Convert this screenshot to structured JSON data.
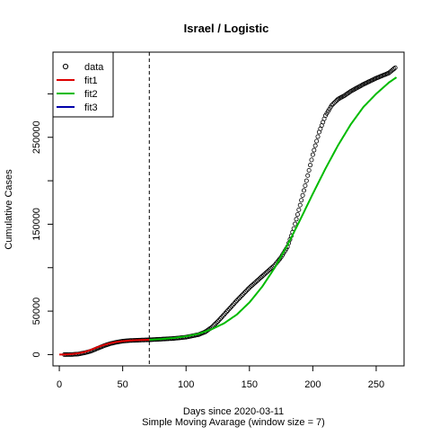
{
  "chart_data": {
    "type": "scatter",
    "title": "Israel / Logistic",
    "xlabel": "Days since 2020-03-11",
    "subtitle": "Simple Moving Avarage (window size = 7)",
    "ylabel": "Cumulative Cases",
    "xlim": [
      -5,
      272
    ],
    "ylim": [
      -13000,
      348000
    ],
    "x_ticks": [
      0,
      50,
      100,
      150,
      200,
      250
    ],
    "y_ticks": [
      0,
      50000,
      150000,
      250000
    ],
    "y_tick_labels": [
      "0",
      "50000",
      "150000",
      "250000"
    ],
    "minor_y_ticks": [
      100000,
      200000,
      300000
    ],
    "cutoff_day": 71,
    "legend": {
      "position": "top-left",
      "entries": [
        {
          "name": "data",
          "symbol": "circle",
          "color": "#000000"
        },
        {
          "name": "fit1",
          "symbol": "line",
          "color": "#dd0000"
        },
        {
          "name": "fit2",
          "symbol": "line",
          "color": "#00bb00"
        },
        {
          "name": "fit3",
          "symbol": "line",
          "color": "#0000aa"
        }
      ]
    },
    "data_series": {
      "name": "data",
      "x_start": 4,
      "x_end": 265,
      "x_step": 1,
      "anchor_x": [
        4,
        10,
        15,
        20,
        25,
        30,
        35,
        40,
        45,
        50,
        55,
        60,
        65,
        71,
        80,
        90,
        100,
        110,
        115,
        120,
        125,
        130,
        140,
        150,
        160,
        170,
        175,
        180,
        185,
        190,
        195,
        200,
        205,
        210,
        215,
        220,
        225,
        230,
        240,
        250,
        260,
        265
      ],
      "anchor_y": [
        0,
        100,
        600,
        2000,
        4000,
        7000,
        10000,
        12500,
        14200,
        15400,
        16100,
        16400,
        16700,
        17000,
        17700,
        18500,
        20000,
        23000,
        26000,
        31000,
        38000,
        46000,
        62000,
        77000,
        90000,
        103000,
        112000,
        124000,
        145000,
        172000,
        200000,
        230000,
        256000,
        275000,
        287000,
        294000,
        298000,
        303000,
        311000,
        318000,
        324000,
        330000
      ]
    },
    "fit1": {
      "name": "fit1",
      "color": "#dd0000",
      "x": [
        0,
        5,
        10,
        15,
        20,
        25,
        30,
        35,
        40,
        45,
        50,
        55,
        60,
        65,
        71
      ],
      "y": [
        0,
        200,
        600,
        1500,
        3000,
        5500,
        8500,
        11000,
        13000,
        14500,
        15500,
        16100,
        16500,
        16800,
        17000
      ]
    },
    "fit2": {
      "name": "fit2",
      "color": "#00bb00",
      "x": [
        71,
        80,
        90,
        100,
        110,
        120,
        130,
        140,
        150,
        160,
        170,
        180,
        190,
        200,
        210,
        220,
        230,
        240,
        250,
        260,
        266
      ],
      "y": [
        17000,
        17800,
        19000,
        21000,
        24000,
        29000,
        36000,
        46000,
        60000,
        78000,
        100000,
        126000,
        155000,
        185000,
        214000,
        241000,
        265000,
        285000,
        300000,
        313000,
        319000
      ]
    }
  }
}
